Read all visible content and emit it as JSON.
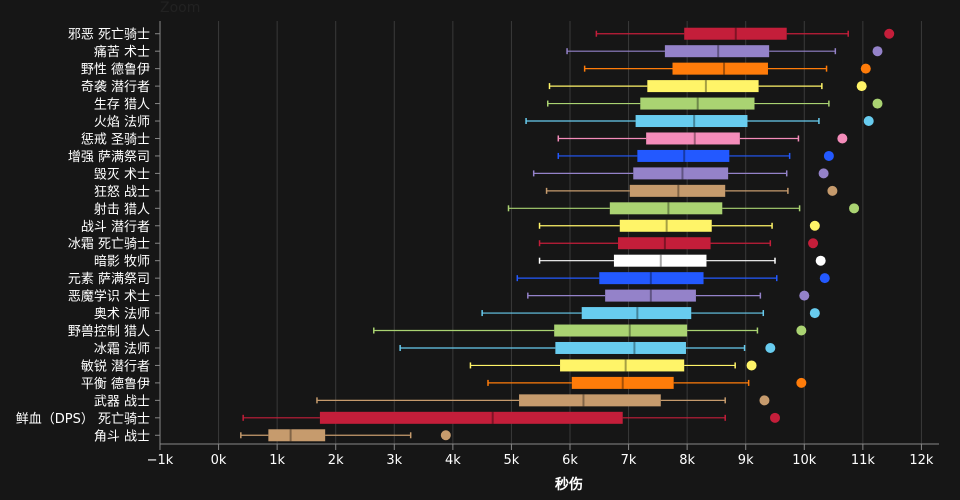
{
  "zoom_label": "Zoom",
  "chart_data": {
    "type": "boxplot",
    "title": "",
    "xlabel": "秒伤",
    "xlim": [
      -1000,
      12300
    ],
    "xticks": [
      -1000,
      0,
      1000,
      2000,
      3000,
      4000,
      5000,
      6000,
      7000,
      8000,
      9000,
      10000,
      11000,
      12000
    ],
    "xtick_labels": [
      "−1k",
      "0k",
      "1k",
      "2k",
      "3k",
      "4k",
      "5k",
      "6k",
      "7k",
      "8k",
      "9k",
      "10k",
      "11k",
      "12k"
    ],
    "grid": true,
    "series": [
      {
        "name": "邪恶 死亡骑士",
        "color": "#C41E3A",
        "min": 6450,
        "q1": 7950,
        "median": 8830,
        "q3": 9700,
        "max": 10750,
        "outlier": 11450
      },
      {
        "name": "痛苦 术士",
        "color": "#9482C9",
        "min": 5950,
        "q1": 7620,
        "median": 8530,
        "q3": 9400,
        "max": 10530,
        "outlier": 11250
      },
      {
        "name": "野性 德鲁伊",
        "color": "#FF7C0A",
        "min": 6250,
        "q1": 7750,
        "median": 8630,
        "q3": 9380,
        "max": 10380,
        "outlier": 11050
      },
      {
        "name": "奇袭 潜行者",
        "color": "#FFF468",
        "min": 5650,
        "q1": 7320,
        "median": 8320,
        "q3": 9220,
        "max": 10300,
        "outlier": 10980
      },
      {
        "name": "生存 猎人",
        "color": "#AAD372",
        "min": 5620,
        "q1": 7200,
        "median": 8180,
        "q3": 9150,
        "max": 10420,
        "outlier": 11250
      },
      {
        "name": "火焰 法师",
        "color": "#68CCEF",
        "min": 5250,
        "q1": 7120,
        "median": 8120,
        "q3": 9030,
        "max": 10250,
        "outlier": 11100
      },
      {
        "name": "惩戒 圣骑士",
        "color": "#F48CBA",
        "min": 5800,
        "q1": 7300,
        "median": 8130,
        "q3": 8900,
        "max": 9900,
        "outlier": 10650
      },
      {
        "name": "增强 萨满祭司",
        "color": "#2359FF",
        "min": 5800,
        "q1": 7150,
        "median": 7950,
        "q3": 8720,
        "max": 9750,
        "outlier": 10420
      },
      {
        "name": "毁灭 术士",
        "color": "#9482C9",
        "min": 5380,
        "q1": 7080,
        "median": 7920,
        "q3": 8700,
        "max": 9700,
        "outlier": 10330
      },
      {
        "name": "狂怒 战士",
        "color": "#C69B6D",
        "min": 5600,
        "q1": 7020,
        "median": 7850,
        "q3": 8650,
        "max": 9720,
        "outlier": 10480
      },
      {
        "name": "射击 猎人",
        "color": "#AAD372",
        "min": 4950,
        "q1": 6680,
        "median": 7680,
        "q3": 8600,
        "max": 9920,
        "outlier": 10850
      },
      {
        "name": "战斗 潜行者",
        "color": "#FFF468",
        "min": 5480,
        "q1": 6850,
        "median": 7650,
        "q3": 8420,
        "max": 9450,
        "outlier": 10180
      },
      {
        "name": "冰霜 死亡骑士",
        "color": "#C41E3A",
        "min": 5480,
        "q1": 6820,
        "median": 7620,
        "q3": 8400,
        "max": 9420,
        "outlier": 10150
      },
      {
        "name": "暗影 牧师",
        "color": "#FFFFFF",
        "min": 5480,
        "q1": 6750,
        "median": 7550,
        "q3": 8330,
        "max": 9500,
        "outlier": 10280
      },
      {
        "name": "元素 萨满祭司",
        "color": "#2359FF",
        "min": 5100,
        "q1": 6500,
        "median": 7380,
        "q3": 8280,
        "max": 9530,
        "outlier": 10350
      },
      {
        "name": "恶魔学识 术士",
        "color": "#9482C9",
        "min": 5280,
        "q1": 6600,
        "median": 7380,
        "q3": 8150,
        "max": 9250,
        "outlier": 10000
      },
      {
        "name": "奥术 法师",
        "color": "#68CCEF",
        "min": 4500,
        "q1": 6200,
        "median": 7150,
        "q3": 8070,
        "max": 9300,
        "outlier": 10180
      },
      {
        "name": "野兽控制 猎人",
        "color": "#AAD372",
        "min": 2650,
        "q1": 5730,
        "median": 7020,
        "q3": 8000,
        "max": 9200,
        "outlier": 9950
      },
      {
        "name": "冰霜 法师",
        "color": "#68CCEF",
        "min": 3100,
        "q1": 5750,
        "median": 7100,
        "q3": 7980,
        "max": 8980,
        "outlier": 9420
      },
      {
        "name": "敏锐 潜行者",
        "color": "#FFF468",
        "min": 4300,
        "q1": 5830,
        "median": 6950,
        "q3": 7950,
        "max": 8820,
        "outlier": 9100
      },
      {
        "name": "平衡 德鲁伊",
        "color": "#FF7C0A",
        "min": 4600,
        "q1": 6030,
        "median": 6900,
        "q3": 7770,
        "max": 9050,
        "outlier": 9950
      },
      {
        "name": "武器 战士",
        "color": "#C69B6D",
        "min": 1680,
        "q1": 5130,
        "median": 6230,
        "q3": 7550,
        "max": 8650,
        "outlier": 9320
      },
      {
        "name": "鲜血（DPS） 死亡骑士",
        "color": "#C41E3A",
        "min": 420,
        "q1": 1730,
        "median": 4680,
        "q3": 6900,
        "max": 8650,
        "outlier": 9500
      },
      {
        "name": "角斗 战士",
        "color": "#C69B6D",
        "min": 380,
        "q1": 850,
        "median": 1230,
        "q3": 1820,
        "max": 3280,
        "outlier": 3880
      }
    ]
  }
}
